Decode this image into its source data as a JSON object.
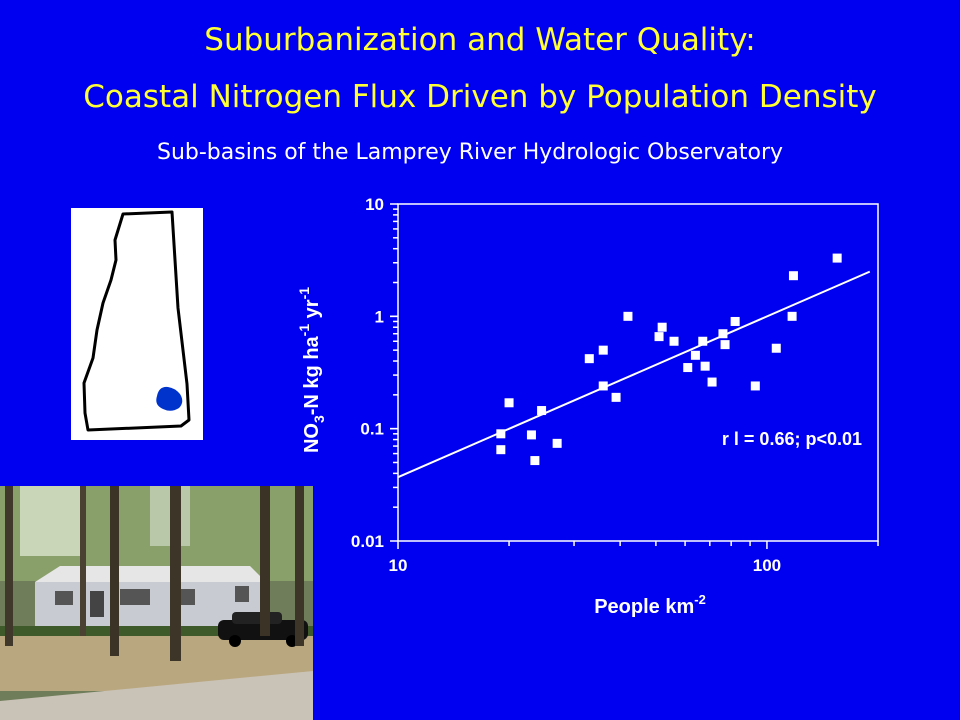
{
  "slide": {
    "title_line1": "Suburbanization and Water Quality:",
    "title_line2": "Coastal Nitrogen Flux Driven by Population Density",
    "subtitle": "Sub-basins of the Lamprey River Hydrologic Observatory"
  },
  "colors": {
    "background": "#0000f0",
    "title": "#ffff33",
    "text": "#ffffff",
    "markers": "#ffffff",
    "basin": "#0033cc"
  },
  "chart_data": {
    "type": "scatter",
    "x_scale": "log",
    "y_scale": "log",
    "xlim": [
      10,
      200
    ],
    "ylim": [
      0.01,
      10
    ],
    "x_ticks": [
      {
        "value": 10,
        "label": "10"
      },
      {
        "value": 100,
        "label": "100"
      }
    ],
    "y_ticks": [
      {
        "value": 10,
        "label": "10"
      },
      {
        "value": 1,
        "label": "1"
      },
      {
        "value": 0.1,
        "label": "0.1"
      },
      {
        "value": 0.01,
        "label": "0.01"
      }
    ],
    "xlabel": {
      "base": "People km",
      "sup": "-2"
    },
    "ylabel": {
      "parts": [
        {
          "text": "NO",
          "style": "normal"
        },
        {
          "text": "3",
          "style": "sub"
        },
        {
          "text": "-N kg ha",
          "style": "normal"
        },
        {
          "text": "-1",
          "style": "sup"
        },
        {
          "text": " yr",
          "style": "normal"
        },
        {
          "text": "-1",
          "style": "sup"
        }
      ]
    },
    "annotation": "r l = 0.66; p<0.01",
    "legend": "none",
    "grid": false,
    "series": [
      {
        "points": [
          {
            "x": 19,
            "y": 0.09
          },
          {
            "x": 19,
            "y": 0.065
          },
          {
            "x": 20,
            "y": 0.17
          },
          {
            "x": 23,
            "y": 0.088
          },
          {
            "x": 23.5,
            "y": 0.052
          },
          {
            "x": 24.5,
            "y": 0.145
          },
          {
            "x": 27,
            "y": 0.074
          },
          {
            "x": 33,
            "y": 0.42
          },
          {
            "x": 36,
            "y": 0.5
          },
          {
            "x": 36,
            "y": 0.24
          },
          {
            "x": 39,
            "y": 0.19
          },
          {
            "x": 42,
            "y": 1.0
          },
          {
            "x": 51,
            "y": 0.66
          },
          {
            "x": 52,
            "y": 0.8
          },
          {
            "x": 56,
            "y": 0.6
          },
          {
            "x": 61,
            "y": 0.35
          },
          {
            "x": 64,
            "y": 0.45
          },
          {
            "x": 67,
            "y": 0.6
          },
          {
            "x": 68,
            "y": 0.36
          },
          {
            "x": 71,
            "y": 0.26
          },
          {
            "x": 76,
            "y": 0.7
          },
          {
            "x": 77,
            "y": 0.56
          },
          {
            "x": 82,
            "y": 0.9
          },
          {
            "x": 93,
            "y": 0.24
          },
          {
            "x": 106,
            "y": 0.52
          },
          {
            "x": 117,
            "y": 1.0
          },
          {
            "x": 118,
            "y": 2.3
          },
          {
            "x": 155,
            "y": 3.3
          }
        ]
      }
    ],
    "trendline": {
      "x": [
        10,
        190
      ],
      "y": [
        0.037,
        2.5
      ]
    }
  }
}
